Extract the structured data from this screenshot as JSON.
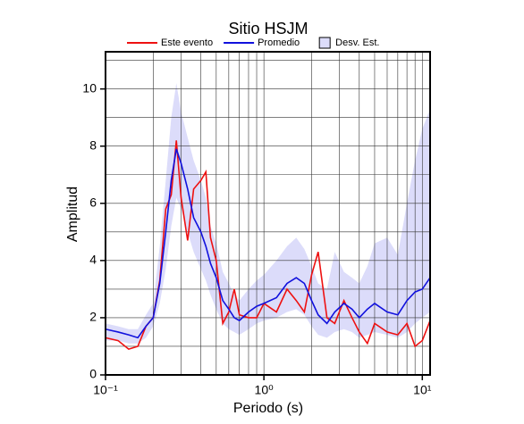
{
  "chart_data": {
    "type": "line",
    "title": "Sitio HSJM",
    "xlabel": "Periodo (s)",
    "ylabel": "Amplitud",
    "xscale": "log",
    "xlim": [
      0.1,
      11.2
    ],
    "ylim": [
      0,
      11.3
    ],
    "xticks": [
      {
        "value": 0.1,
        "label": "10⁻¹"
      },
      {
        "value": 1,
        "label": "10⁰"
      },
      {
        "value": 10,
        "label": "10¹"
      }
    ],
    "yticks": [
      0,
      2,
      4,
      6,
      8,
      10
    ],
    "xgrid": [
      0.2,
      0.3,
      0.4,
      0.5,
      0.6,
      0.7,
      0.8,
      0.9,
      2,
      3,
      4,
      5,
      6,
      7,
      8,
      9
    ],
    "ygrid": [
      1,
      3,
      5,
      7,
      9,
      11
    ],
    "grid": true,
    "legend": "top",
    "x": [
      0.1,
      0.12,
      0.14,
      0.16,
      0.18,
      0.2,
      0.22,
      0.24,
      0.26,
      0.28,
      0.3,
      0.33,
      0.36,
      0.4,
      0.43,
      0.46,
      0.5,
      0.55,
      0.6,
      0.65,
      0.7,
      0.8,
      0.9,
      1.0,
      1.2,
      1.4,
      1.6,
      1.8,
      2.0,
      2.2,
      2.5,
      2.8,
      3.2,
      3.6,
      4,
      4.5,
      5,
      6,
      7,
      8,
      9,
      10,
      11.2
    ],
    "series": [
      {
        "name": "Este evento",
        "color": "#ee1111",
        "values": [
          1.3,
          1.2,
          0.9,
          1.0,
          1.7,
          2.0,
          3.3,
          5.8,
          6.3,
          8.2,
          6.2,
          4.7,
          6.5,
          6.8,
          7.1,
          4.8,
          4.0,
          1.8,
          2.2,
          3.0,
          2.1,
          2.0,
          2.0,
          2.5,
          2.2,
          3.0,
          2.6,
          2.2,
          3.5,
          4.3,
          2.0,
          1.8,
          2.6,
          2.0,
          1.5,
          1.1,
          1.8,
          1.5,
          1.4,
          1.8,
          1.0,
          1.2,
          1.9
        ]
      },
      {
        "name": "Promedio",
        "color": "#1111dd",
        "values": [
          1.6,
          1.5,
          1.4,
          1.3,
          1.7,
          2.0,
          3.2,
          5.0,
          6.8,
          7.9,
          7.4,
          6.5,
          5.5,
          5.0,
          4.5,
          3.9,
          3.4,
          2.6,
          2.3,
          2.0,
          1.9,
          2.2,
          2.4,
          2.5,
          2.7,
          3.2,
          3.4,
          3.2,
          2.6,
          2.1,
          1.8,
          2.2,
          2.5,
          2.3,
          2.0,
          2.3,
          2.5,
          2.2,
          2.1,
          2.6,
          2.9,
          3.0,
          3.4
        ]
      }
    ],
    "band": {
      "name": "Desv. Est.",
      "color": "#dcdcfa",
      "lower": [
        1.2,
        1.2,
        1.1,
        1.1,
        1.3,
        1.7,
        2.5,
        3.7,
        5.2,
        6.2,
        5.8,
        5.0,
        4.3,
        3.7,
        3.3,
        2.8,
        2.3,
        1.8,
        1.6,
        1.5,
        1.4,
        1.6,
        1.8,
        1.9,
        2.0,
        2.2,
        2.3,
        2.1,
        1.7,
        1.4,
        1.3,
        1.5,
        1.6,
        1.5,
        1.3,
        1.4,
        1.5,
        1.4,
        1.3,
        1.5,
        1.8,
        2.0,
        2.2
      ],
      "upper": [
        1.8,
        1.7,
        1.6,
        1.6,
        2.1,
        2.5,
        4.5,
        6.8,
        9.0,
        10.2,
        9.2,
        8.3,
        7.5,
        6.8,
        6.2,
        5.2,
        4.6,
        3.6,
        3.2,
        2.8,
        2.6,
        3.0,
        3.3,
        3.5,
        4.0,
        4.5,
        4.8,
        4.4,
        3.8,
        3.2,
        3.0,
        4.3,
        3.6,
        3.4,
        3.2,
        3.8,
        4.6,
        4.8,
        4.2,
        6.0,
        7.5,
        8.6,
        9.3
      ]
    }
  }
}
